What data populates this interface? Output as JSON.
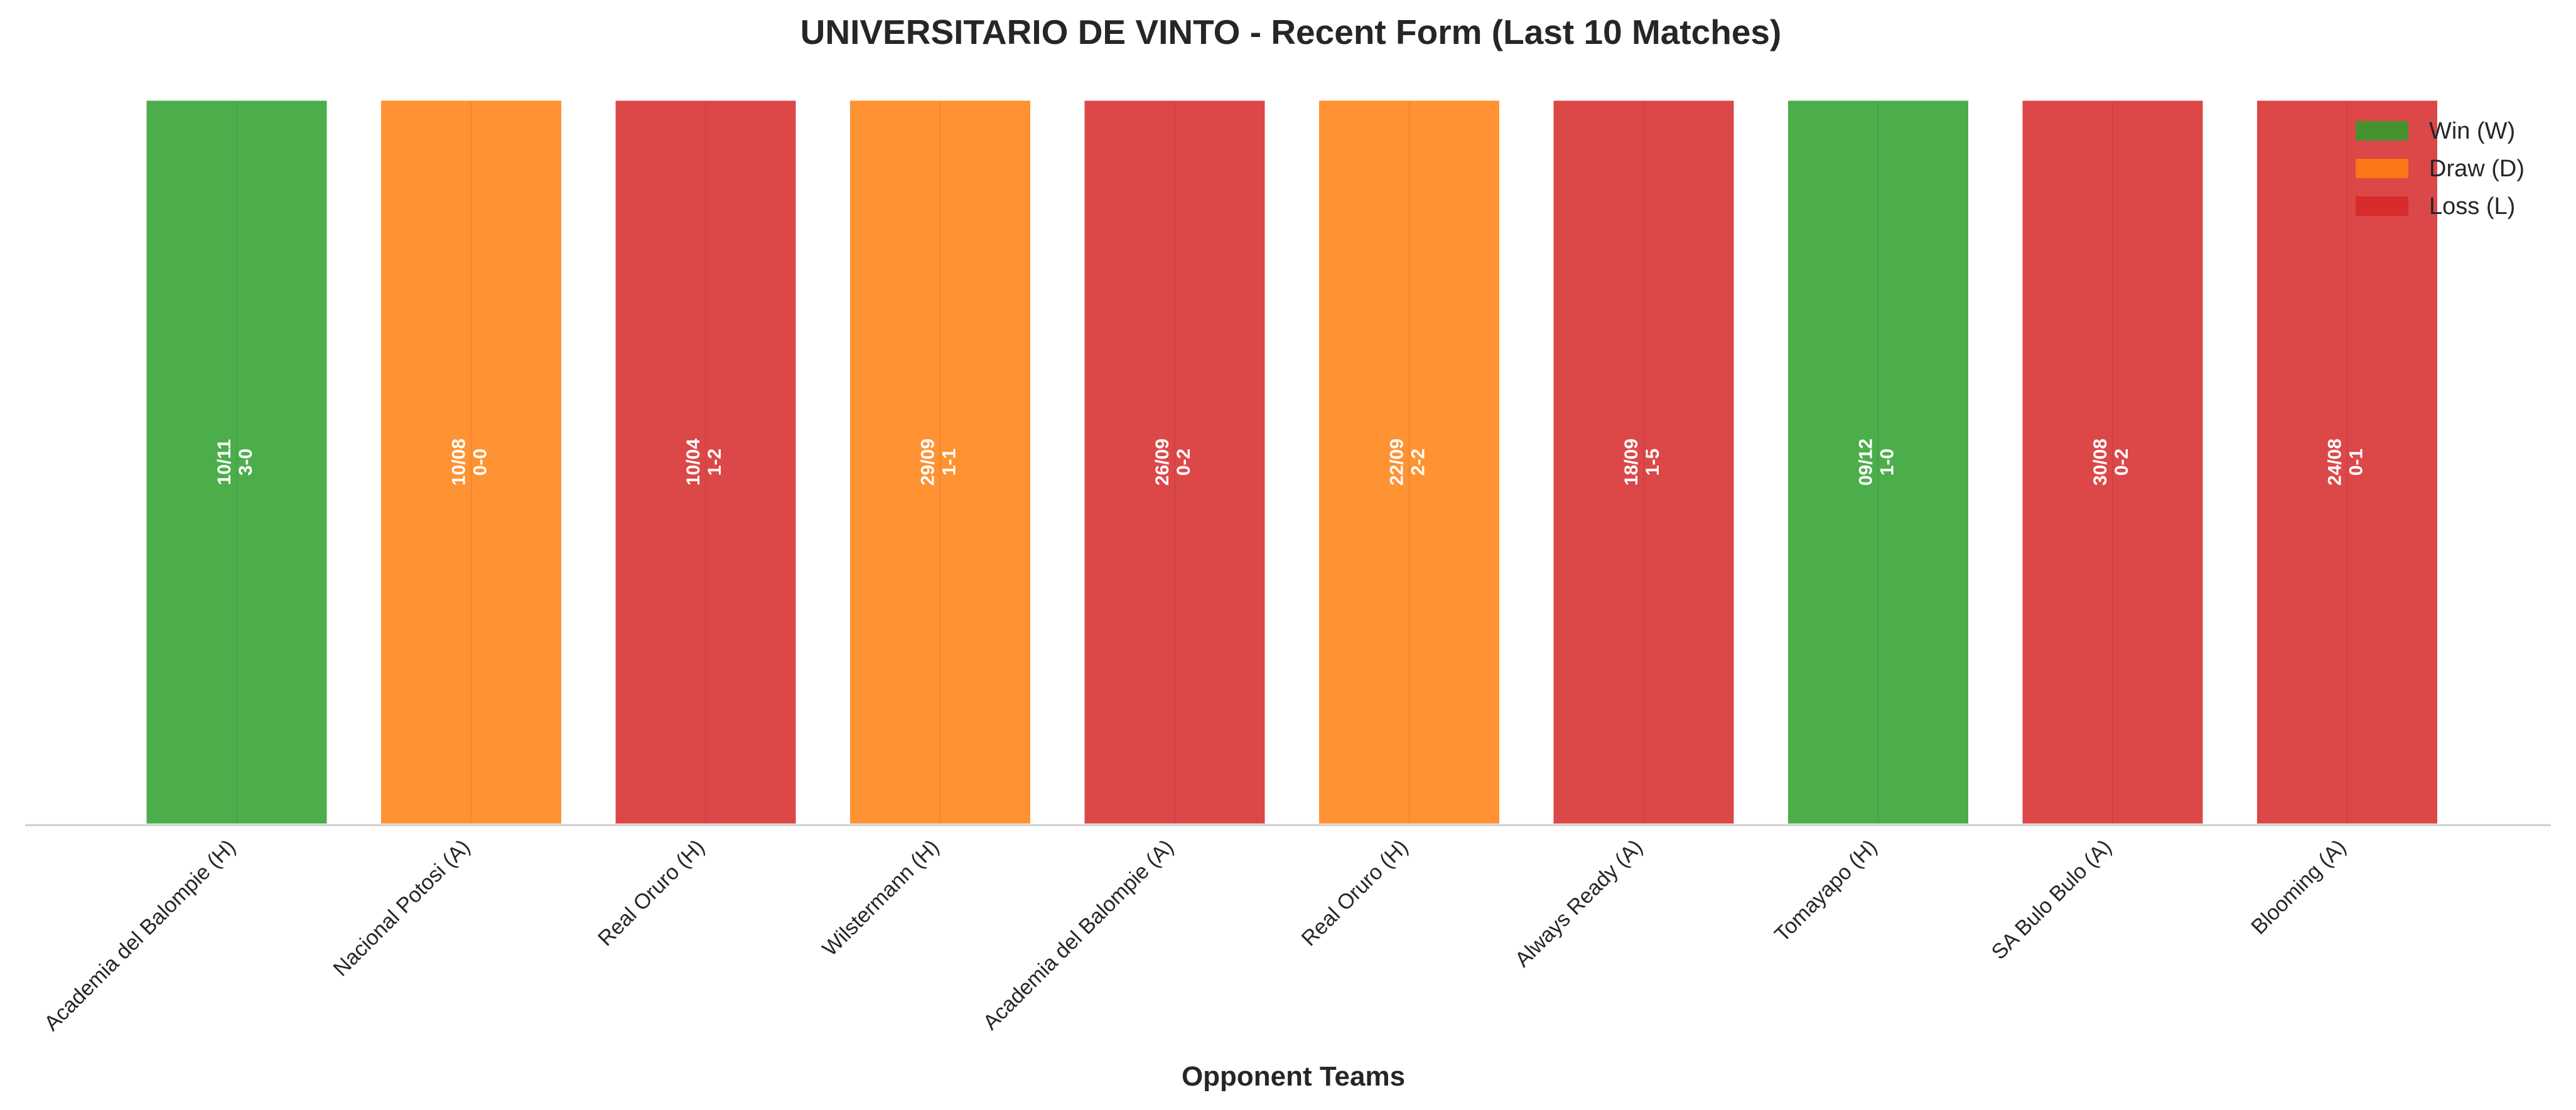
{
  "chart_data": {
    "type": "bar",
    "title": "UNIVERSITARIO DE VINTO - Recent Form (Last 10 Matches)",
    "xlabel": "Opponent Teams",
    "ylabel": "",
    "grid": false,
    "legend_position": "top-right",
    "categories": [
      "Academia del Balompie (H)",
      "Nacional Potosi (A)",
      "Real Oruro (H)",
      "Wilstermann (H)",
      "Academia del Balompie (A)",
      "Real Oruro (H)",
      "Always Ready (A)",
      "Tomayapo (H)",
      "SA Bulo Bulo (A)",
      "Blooming (A)"
    ],
    "values": [
      1,
      1,
      1,
      1,
      1,
      1,
      1,
      1,
      1,
      1
    ],
    "results": [
      "W",
      "D",
      "L",
      "D",
      "L",
      "D",
      "L",
      "W",
      "L",
      "L"
    ],
    "dates": [
      "10/11",
      "10/08",
      "10/04",
      "29/09",
      "26/09",
      "22/09",
      "18/09",
      "09/12",
      "30/08",
      "24/08"
    ],
    "scores": [
      "3-0",
      "0-0",
      "1-2",
      "1-1",
      "0-2",
      "2-2",
      "1-5",
      "1-0",
      "0-2",
      "0-1"
    ],
    "legend": [
      {
        "key": "W",
        "label": "Win (W)",
        "color": "#2ca02c"
      },
      {
        "key": "D",
        "label": "Draw (D)",
        "color": "#ff7f0e"
      },
      {
        "key": "L",
        "label": "Loss (L)",
        "color": "#d62728"
      }
    ]
  }
}
